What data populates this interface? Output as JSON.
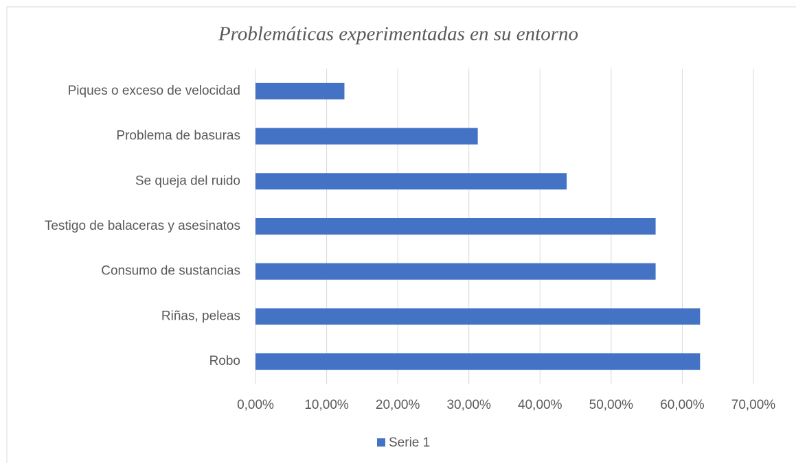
{
  "chart_data": {
    "type": "bar",
    "orientation": "horizontal",
    "title": "Problemáticas experimentadas en su entorno",
    "categories": [
      "Piques o exceso de velocidad",
      "Problema de basuras",
      "Se queja del ruido",
      "Testigo de balaceras y asesinatos",
      "Consumo de sustancias",
      "Riñas, peleas",
      "Robo"
    ],
    "series": [
      {
        "name": "Serie 1",
        "color": "#4472c4",
        "values": [
          12.5,
          31.25,
          43.75,
          56.25,
          56.25,
          62.5,
          62.5
        ]
      }
    ],
    "xlim": [
      0,
      70
    ],
    "xticks": [
      {
        "value": 0,
        "label": "0,00%"
      },
      {
        "value": 10,
        "label": "10,00%"
      },
      {
        "value": 20,
        "label": "20,00%"
      },
      {
        "value": 30,
        "label": "30,00%"
      },
      {
        "value": 40,
        "label": "40,00%"
      },
      {
        "value": 50,
        "label": "50,00%"
      },
      {
        "value": 60,
        "label": "60,00%"
      },
      {
        "value": 70,
        "label": "70,00%"
      }
    ],
    "grid": true,
    "legend": "bottom"
  }
}
